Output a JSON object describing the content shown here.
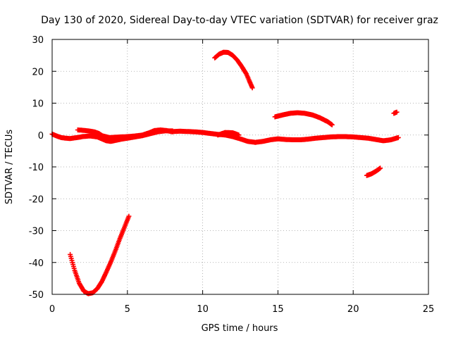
{
  "chart_data": {
    "type": "scatter",
    "title": "Day 130 of 2020, Sidereal Day-to-day VTEC variation (SDTVAR) for receiver graz",
    "xlabel": "GPS time / hours",
    "ylabel": "SDTVAR / TECUs",
    "xlim": [
      0,
      25
    ],
    "ylim": [
      -50,
      30
    ],
    "xticks": [
      0,
      5,
      10,
      15,
      20,
      25
    ],
    "yticks": [
      -50,
      -40,
      -30,
      -20,
      -10,
      0,
      10,
      20,
      30
    ],
    "grid": true,
    "legend": "none",
    "marker": "plus",
    "color": "#ff0000",
    "series": [
      {
        "x": [
          0.0,
          0.3,
          0.6,
          0.9,
          1.2,
          1.5,
          1.8,
          2.0
        ],
        "y": [
          0.3,
          -0.3,
          -0.8,
          -1.0,
          -1.1,
          -0.9,
          -0.7,
          -0.5
        ]
      },
      {
        "x": [
          1.7,
          2.0,
          2.4,
          2.8,
          3.1,
          3.3
        ],
        "y": [
          1.6,
          1.5,
          1.3,
          1.0,
          0.5,
          -0.1
        ]
      },
      {
        "x": [
          2.0,
          2.5,
          3.0,
          3.3,
          3.6,
          3.9,
          4.2,
          4.6,
          5.0,
          5.5,
          6.0,
          6.5,
          7.0,
          7.5,
          8.0
        ],
        "y": [
          -0.5,
          -0.3,
          -0.6,
          -1.2,
          -1.8,
          -2.0,
          -1.7,
          -1.3,
          -1.0,
          -0.6,
          -0.2,
          0.4,
          1.0,
          1.3,
          1.3
        ]
      },
      {
        "x": [
          3.3,
          3.8,
          4.5,
          5.0,
          5.5,
          6.0,
          6.5,
          6.8,
          7.2,
          7.6,
          8.0
        ],
        "y": [
          -0.2,
          -0.8,
          -0.6,
          -0.5,
          -0.3,
          0.0,
          0.8,
          1.4,
          1.6,
          1.4,
          1.0
        ]
      },
      {
        "x": [
          8.0,
          8.5,
          9.0,
          9.5,
          10.0,
          10.5,
          11.0,
          11.5,
          12.0,
          12.5,
          13.0,
          13.5,
          14.0,
          14.5,
          15.0
        ],
        "y": [
          1.1,
          1.2,
          1.1,
          1.0,
          0.8,
          0.5,
          0.2,
          0.0,
          -0.5,
          -1.2,
          -2.0,
          -2.3,
          -2.0,
          -1.5,
          -1.2
        ]
      },
      {
        "x": [
          11.0,
          11.5,
          12.0,
          12.4
        ],
        "y": [
          0.0,
          0.8,
          0.7,
          0.0
        ]
      },
      {
        "x": [
          15.0,
          15.5,
          16.0,
          16.5,
          17.0,
          17.5,
          18.0,
          18.5,
          19.0,
          19.5,
          20.0,
          20.5,
          21.0,
          21.5,
          22.0,
          22.5,
          23.0
        ],
        "y": [
          -1.2,
          -1.4,
          -1.5,
          -1.5,
          -1.3,
          -1.0,
          -0.8,
          -0.6,
          -0.5,
          -0.5,
          -0.6,
          -0.8,
          -1.0,
          -1.4,
          -1.8,
          -1.5,
          -0.8
        ]
      },
      {
        "x": [
          1.2,
          1.5,
          1.8,
          2.1,
          2.4,
          2.7,
          3.0,
          3.3,
          3.6,
          3.9,
          4.2,
          4.5,
          4.8,
          5.1
        ],
        "y": [
          -37.5,
          -42.5,
          -46.5,
          -49.0,
          -49.8,
          -49.5,
          -48.2,
          -46.0,
          -43.0,
          -39.8,
          -36.3,
          -32.5,
          -29.0,
          -25.5
        ]
      },
      {
        "x": [
          10.8,
          11.1,
          11.4,
          11.7,
          12.0,
          12.3,
          12.6,
          12.9,
          13.1,
          13.3
        ],
        "y": [
          24.2,
          25.4,
          26.0,
          25.9,
          25.0,
          23.5,
          21.5,
          19.2,
          17.0,
          14.8
        ]
      },
      {
        "x": [
          14.8,
          15.3,
          15.8,
          16.3,
          16.8,
          17.3,
          17.8,
          18.3,
          18.6
        ],
        "y": [
          5.7,
          6.3,
          6.8,
          7.0,
          6.8,
          6.3,
          5.4,
          4.2,
          3.2
        ]
      },
      {
        "x": [
          20.9,
          21.2,
          21.5,
          21.8
        ],
        "y": [
          -12.7,
          -12.2,
          -11.4,
          -10.4
        ]
      },
      {
        "x": [
          22.7,
          22.9
        ],
        "y": [
          6.8,
          7.2
        ]
      }
    ]
  }
}
